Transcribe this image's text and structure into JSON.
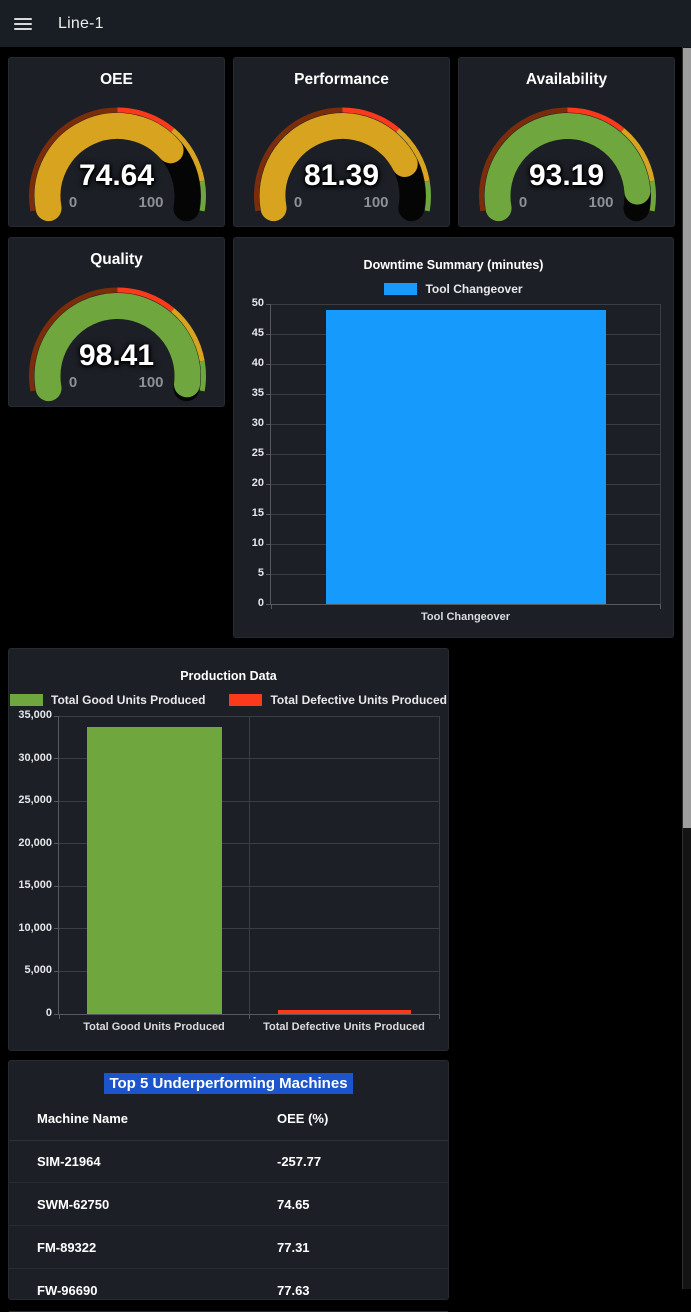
{
  "header": {
    "title": "Line-1"
  },
  "gauges": {
    "oee": {
      "title": "OEE",
      "value": "74.64",
      "min": "0",
      "max": "100"
    },
    "performance": {
      "title": "Performance",
      "value": "81.39",
      "min": "0",
      "max": "100"
    },
    "availability": {
      "title": "Availability",
      "value": "93.19",
      "min": "0",
      "max": "100"
    },
    "quality": {
      "title": "Quality",
      "value": "98.41",
      "min": "0",
      "max": "100"
    }
  },
  "thresholds": [
    {
      "upto": 50,
      "color": "#7b2d0b"
    },
    {
      "upto": 70,
      "color": "#fb3a1c"
    },
    {
      "upto": 90,
      "color": "#d8a41f"
    },
    {
      "upto": 100,
      "color": "#6fa63d"
    }
  ],
  "charts": {
    "downtime": {
      "title": "Downtime Summary (minutes)",
      "chart_data": {
        "type": "bar",
        "categories": [
          "Tool Changeover"
        ],
        "values": [
          49
        ],
        "legend": [
          {
            "label": "Tool Changeover",
            "color": "#169bfd"
          }
        ],
        "ylim": [
          0,
          50
        ],
        "yticks": [
          "0",
          "5",
          "10",
          "15",
          "20",
          "25",
          "30",
          "35",
          "40",
          "45",
          "50"
        ]
      }
    },
    "production": {
      "title": "Production Data",
      "chart_data": {
        "type": "bar",
        "categories": [
          "Total Good Units Produced",
          "Total Defective Units Produced"
        ],
        "values": [
          33700,
          500
        ],
        "legend": [
          {
            "label": "Total Good Units Produced",
            "color": "#6fa63d"
          },
          {
            "label": "Total Defective Units Produced",
            "color": "#fb3a1c"
          }
        ],
        "ylim": [
          0,
          35000
        ],
        "yticks": [
          "0",
          "5,000",
          "10,000",
          "15,000",
          "20,000",
          "25,000",
          "30,000",
          "35,000"
        ]
      }
    }
  },
  "table": {
    "title": "Top 5 Underperforming Machines",
    "columns": [
      "Machine Name",
      "OEE (%)"
    ],
    "rows": [
      {
        "machine": "SIM-21964",
        "oee": "-257.77"
      },
      {
        "machine": "SWM-62750",
        "oee": "74.65"
      },
      {
        "machine": "FM-89322",
        "oee": "77.31"
      },
      {
        "machine": "FW-96690",
        "oee": "77.63"
      }
    ]
  },
  "colors": {
    "page_bg": "#000000",
    "header_bg": "#191d24",
    "panel_bg": "#1c1f26",
    "accent_blue": "#169bfd",
    "bar_green": "#6fa63d",
    "bar_red": "#fb3a1c",
    "gauge_gold": "#d8a41f",
    "table_title_highlight": "#1b54cb",
    "scrollbar_thumb": "#9d9d9d"
  }
}
